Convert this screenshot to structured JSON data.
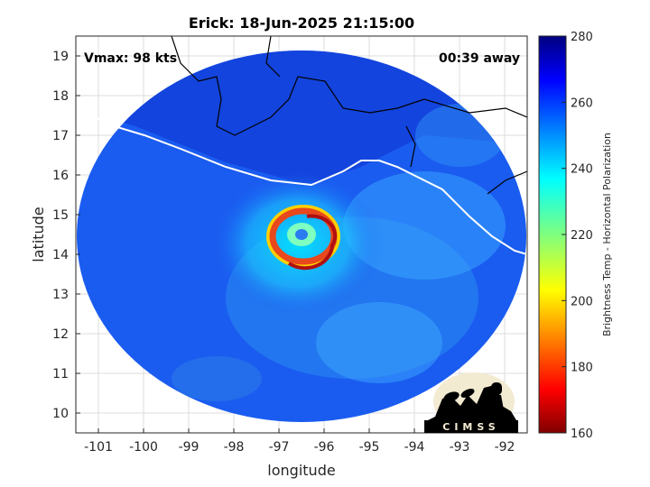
{
  "title": "Erick: 18-Jun-2025 21:15:00",
  "vmax_label": "Vmax: 98 kts",
  "time_away_label": "00:39 away",
  "axes": {
    "xlabel": "longitude",
    "ylabel": "latitude",
    "x_ticks": [
      -101,
      -100,
      -99,
      -98,
      -97,
      -96,
      -95,
      -94,
      -93,
      -92
    ],
    "y_ticks": [
      10,
      11,
      12,
      13,
      14,
      15,
      16,
      17,
      18,
      19
    ],
    "xlim": [
      -101.5,
      -91.5
    ],
    "ylim": [
      9.5,
      19.5
    ],
    "grid": true
  },
  "colorbar": {
    "label": "Brightness Temp - Horizontal Polarization",
    "ticks": [
      160,
      180,
      200,
      220,
      240,
      260,
      280
    ],
    "range": [
      160,
      280
    ],
    "colormap": "jet"
  },
  "storm_center": {
    "lon": -96.6,
    "lat": 14.4
  },
  "logo_text": "CIMSS",
  "colors": {
    "background_cold": "#1a5cf0",
    "eyewall": "#e8481c",
    "coast": "#ffffff",
    "border": "#000000"
  }
}
